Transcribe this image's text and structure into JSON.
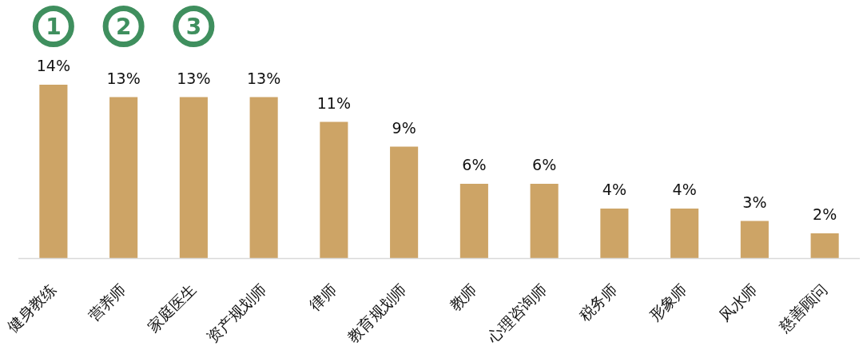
{
  "chart_data": {
    "type": "bar",
    "categories": [
      "健身教练",
      "营养师",
      "家庭医生",
      "资产规划师",
      "律师",
      "教育规划师",
      "教师",
      "心理咨询师",
      "税务师",
      "形象师",
      "风水师",
      "慈善顾问"
    ],
    "values": [
      14,
      13,
      13,
      13,
      11,
      9,
      6,
      6,
      4,
      4,
      3,
      2
    ],
    "value_labels": [
      "14%",
      "13%",
      "13%",
      "13%",
      "11%",
      "9%",
      "6%",
      "6%",
      "4%",
      "4%",
      "3%",
      "2%"
    ],
    "color": "#cda466",
    "annotations": [
      "1",
      "2",
      "3"
    ]
  }
}
